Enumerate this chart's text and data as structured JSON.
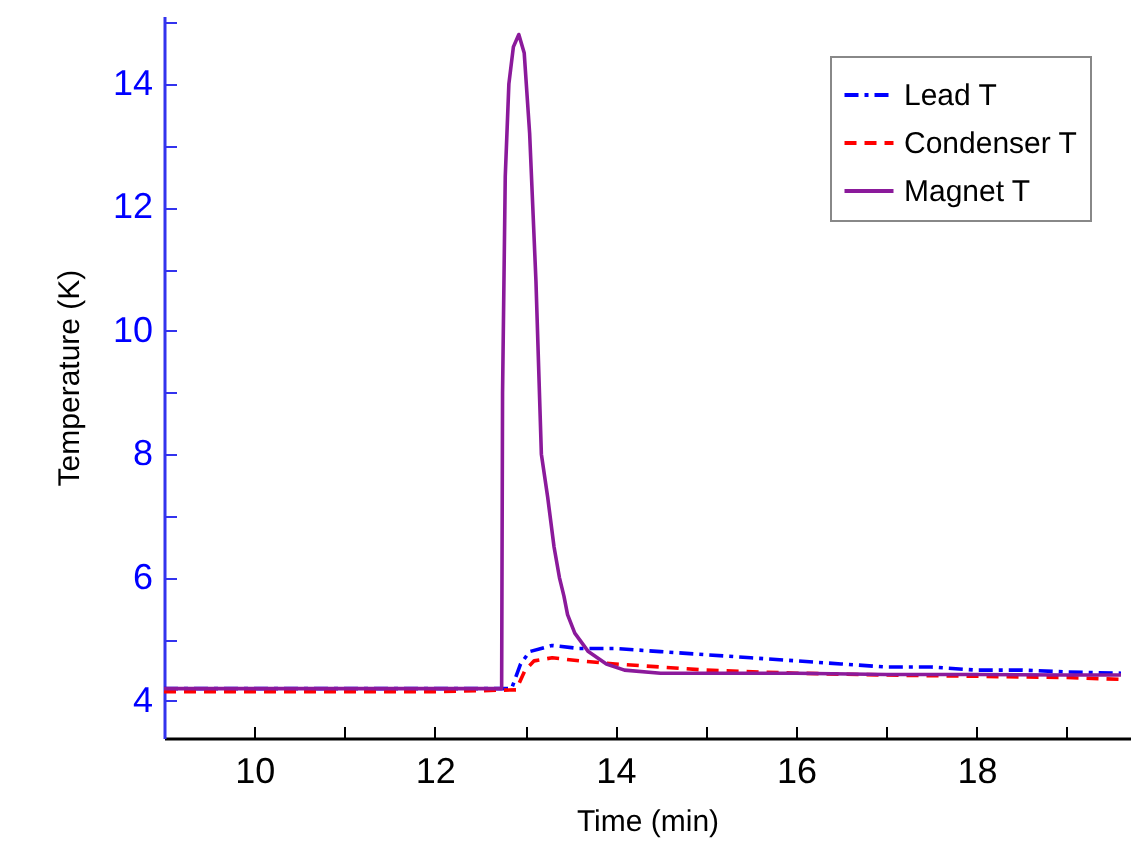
{
  "chart_data": {
    "type": "line",
    "xlabel": "Time (min)",
    "ylabel": "Temperature (K)",
    "xlim": [
      9,
      19.7
    ],
    "ylim": [
      3.4,
      15.1
    ],
    "xticks": [
      {
        "value": 9,
        "label": null
      },
      10,
      {
        "value": 11,
        "label": null
      },
      12,
      {
        "value": 13,
        "label": null
      },
      14,
      {
        "value": 15,
        "label": null
      },
      16,
      {
        "value": 17,
        "label": null
      },
      18,
      {
        "value": 19,
        "label": null
      }
    ],
    "yticks": [
      4,
      {
        "value": 5,
        "label": null
      },
      6,
      {
        "value": 7,
        "label": null
      },
      8,
      {
        "value": 9,
        "label": null
      },
      10,
      {
        "value": 11,
        "label": null
      },
      12,
      {
        "value": 13,
        "label": null
      },
      14,
      {
        "value": 15,
        "label": null
      }
    ],
    "legend": "top right",
    "grid": false,
    "series": [
      {
        "name": "Lead T",
        "color": "#0000ff",
        "line_style": "dashdot",
        "x": [
          9,
          10,
          11,
          12,
          12.85,
          12.95,
          13.05,
          13.3,
          13.6,
          14,
          14.5,
          15,
          15.5,
          16,
          16.5,
          17,
          17.5,
          18,
          18.5,
          19,
          19.6
        ],
        "values": [
          4.2,
          4.2,
          4.2,
          4.2,
          4.2,
          4.6,
          4.8,
          4.9,
          4.85,
          4.85,
          4.8,
          4.75,
          4.7,
          4.65,
          4.6,
          4.55,
          4.55,
          4.5,
          4.5,
          4.47,
          4.45
        ]
      },
      {
        "name": "Condenser T",
        "color": "#ff0000",
        "line_style": "dashed",
        "x": [
          9,
          10,
          11,
          12,
          12.9,
          13,
          13.1,
          13.3,
          13.6,
          14,
          14.5,
          15,
          16,
          17,
          18,
          19,
          19.6
        ],
        "values": [
          4.15,
          4.15,
          4.15,
          4.15,
          4.18,
          4.5,
          4.65,
          4.7,
          4.65,
          4.6,
          4.55,
          4.5,
          4.45,
          4.42,
          4.4,
          4.38,
          4.35
        ]
      },
      {
        "name": "Magnet T",
        "color": "#8b1a9b",
        "line_style": "solid",
        "x": [
          9,
          10,
          11,
          12,
          12.74,
          12.75,
          12.78,
          12.82,
          12.87,
          12.93,
          12.99,
          13.05,
          13.12,
          13.18,
          13.25,
          13.32,
          13.38,
          13.43,
          13.47,
          13.55,
          13.7,
          13.9,
          14.1,
          14.5,
          15,
          16,
          17,
          18,
          19,
          19.6
        ],
        "values": [
          4.2,
          4.2,
          4.2,
          4.2,
          4.2,
          9,
          12.5,
          14,
          14.6,
          14.8,
          14.5,
          13.2,
          10.8,
          8,
          7.3,
          6.5,
          6,
          5.7,
          5.4,
          5.1,
          4.8,
          4.6,
          4.5,
          4.45,
          4.45,
          4.45,
          4.43,
          4.43,
          4.42,
          4.42
        ]
      }
    ]
  }
}
